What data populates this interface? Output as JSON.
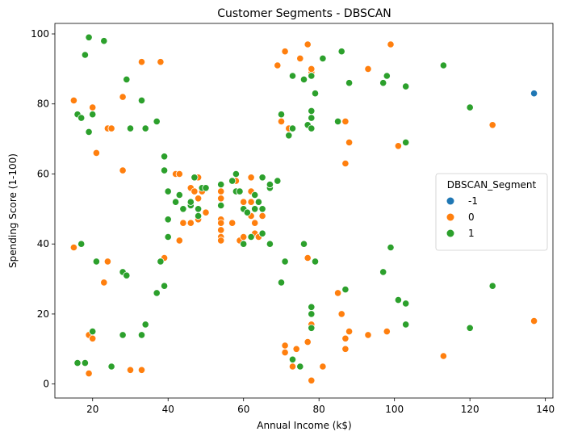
{
  "chart_data": {
    "type": "scatter",
    "title": "Customer Segments - DBSCAN",
    "xlabel": "Annual Income (k$)",
    "ylabel": "Spending Score (1-100)",
    "xlim": [
      10,
      142
    ],
    "ylim": [
      -4,
      103
    ],
    "xticks": [
      20,
      40,
      60,
      80,
      100,
      120,
      140
    ],
    "yticks": [
      0,
      20,
      40,
      60,
      80,
      100
    ],
    "grid": false,
    "legend": {
      "title": "DBSCAN_Segment",
      "placement": "right"
    },
    "series": [
      {
        "name": "-1",
        "color": "#1f77b4",
        "points": [
          [
            137,
            83
          ]
        ]
      },
      {
        "name": "0",
        "color": "#ff7f0e",
        "points": [
          [
            15,
            39
          ],
          [
            15,
            81
          ],
          [
            19,
            3
          ],
          [
            19,
            14
          ],
          [
            20,
            13
          ],
          [
            20,
            79
          ],
          [
            21,
            66
          ],
          [
            23,
            29
          ],
          [
            24,
            35
          ],
          [
            24,
            73
          ],
          [
            25,
            73
          ],
          [
            28,
            61
          ],
          [
            28,
            82
          ],
          [
            30,
            4
          ],
          [
            33,
            4
          ],
          [
            33,
            92
          ],
          [
            38,
            92
          ],
          [
            39,
            36
          ],
          [
            42,
            60
          ],
          [
            43,
            60
          ],
          [
            43,
            41
          ],
          [
            44,
            46
          ],
          [
            46,
            46
          ],
          [
            46,
            56
          ],
          [
            47,
            55
          ],
          [
            48,
            59
          ],
          [
            48,
            53
          ],
          [
            48,
            47
          ],
          [
            49,
            55
          ],
          [
            50,
            49
          ],
          [
            54,
            55
          ],
          [
            54,
            53
          ],
          [
            54,
            47
          ],
          [
            54,
            46
          ],
          [
            54,
            44
          ],
          [
            54,
            42
          ],
          [
            54,
            41
          ],
          [
            57,
            46
          ],
          [
            58,
            58
          ],
          [
            59,
            41
          ],
          [
            60,
            52
          ],
          [
            60,
            42
          ],
          [
            62,
            59
          ],
          [
            62,
            55
          ],
          [
            62,
            52
          ],
          [
            62,
            48
          ],
          [
            63,
            46
          ],
          [
            63,
            43
          ],
          [
            64,
            42
          ],
          [
            65,
            48
          ],
          [
            69,
            91
          ],
          [
            70,
            75
          ],
          [
            71,
            95
          ],
          [
            71,
            11
          ],
          [
            71,
            9
          ],
          [
            72,
            73
          ],
          [
            73,
            5
          ],
          [
            74,
            10
          ],
          [
            75,
            93
          ],
          [
            77,
            12
          ],
          [
            77,
            36
          ],
          [
            77,
            97
          ],
          [
            78,
            89
          ],
          [
            78,
            90
          ],
          [
            78,
            17
          ],
          [
            78,
            1
          ],
          [
            81,
            5
          ],
          [
            85,
            26
          ],
          [
            86,
            20
          ],
          [
            86,
            95
          ],
          [
            87,
            75
          ],
          [
            87,
            63
          ],
          [
            87,
            13
          ],
          [
            87,
            10
          ],
          [
            88,
            69
          ],
          [
            88,
            15
          ],
          [
            93,
            14
          ],
          [
            93,
            90
          ],
          [
            98,
            15
          ],
          [
            99,
            97
          ],
          [
            101,
            68
          ],
          [
            113,
            8
          ],
          [
            126,
            74
          ],
          [
            137,
            18
          ]
        ]
      },
      {
        "name": "1",
        "color": "#2ca02c",
        "points": [
          [
            16,
            6
          ],
          [
            16,
            77
          ],
          [
            17,
            40
          ],
          [
            17,
            76
          ],
          [
            18,
            6
          ],
          [
            18,
            94
          ],
          [
            19,
            72
          ],
          [
            19,
            99
          ],
          [
            20,
            15
          ],
          [
            20,
            77
          ],
          [
            21,
            35
          ],
          [
            23,
            98
          ],
          [
            25,
            5
          ],
          [
            28,
            14
          ],
          [
            28,
            32
          ],
          [
            29,
            31
          ],
          [
            29,
            87
          ],
          [
            30,
            73
          ],
          [
            33,
            14
          ],
          [
            33,
            81
          ],
          [
            34,
            17
          ],
          [
            34,
            73
          ],
          [
            37,
            26
          ],
          [
            37,
            75
          ],
          [
            38,
            35
          ],
          [
            39,
            61
          ],
          [
            39,
            65
          ],
          [
            39,
            28
          ],
          [
            40,
            55
          ],
          [
            40,
            47
          ],
          [
            40,
            42
          ],
          [
            42,
            52
          ],
          [
            43,
            54
          ],
          [
            44,
            50
          ],
          [
            46,
            51
          ],
          [
            46,
            52
          ],
          [
            47,
            59
          ],
          [
            48,
            50
          ],
          [
            48,
            48
          ],
          [
            49,
            56
          ],
          [
            50,
            56
          ],
          [
            54,
            57
          ],
          [
            54,
            51
          ],
          [
            57,
            58
          ],
          [
            58,
            55
          ],
          [
            58,
            60
          ],
          [
            59,
            55
          ],
          [
            60,
            50
          ],
          [
            60,
            40
          ],
          [
            61,
            49
          ],
          [
            62,
            42
          ],
          [
            63,
            54
          ],
          [
            63,
            50
          ],
          [
            64,
            52
          ],
          [
            65,
            50
          ],
          [
            65,
            59
          ],
          [
            65,
            43
          ],
          [
            67,
            56
          ],
          [
            67,
            57
          ],
          [
            67,
            40
          ],
          [
            69,
            58
          ],
          [
            70,
            77
          ],
          [
            70,
            29
          ],
          [
            71,
            35
          ],
          [
            72,
            71
          ],
          [
            73,
            88
          ],
          [
            73,
            73
          ],
          [
            73,
            7
          ],
          [
            75,
            5
          ],
          [
            76,
            87
          ],
          [
            76,
            40
          ],
          [
            77,
            74
          ],
          [
            78,
            76
          ],
          [
            78,
            78
          ],
          [
            78,
            88
          ],
          [
            78,
            73
          ],
          [
            78,
            22
          ],
          [
            78,
            20
          ],
          [
            78,
            16
          ],
          [
            79,
            83
          ],
          [
            79,
            35
          ],
          [
            81,
            93
          ],
          [
            85,
            75
          ],
          [
            86,
            95
          ],
          [
            87,
            27
          ],
          [
            88,
            86
          ],
          [
            97,
            32
          ],
          [
            97,
            86
          ],
          [
            98,
            88
          ],
          [
            99,
            39
          ],
          [
            101,
            24
          ],
          [
            103,
            85
          ],
          [
            103,
            69
          ],
          [
            103,
            23
          ],
          [
            103,
            17
          ],
          [
            113,
            91
          ],
          [
            120,
            79
          ],
          [
            120,
            16
          ],
          [
            126,
            28
          ]
        ]
      }
    ]
  }
}
